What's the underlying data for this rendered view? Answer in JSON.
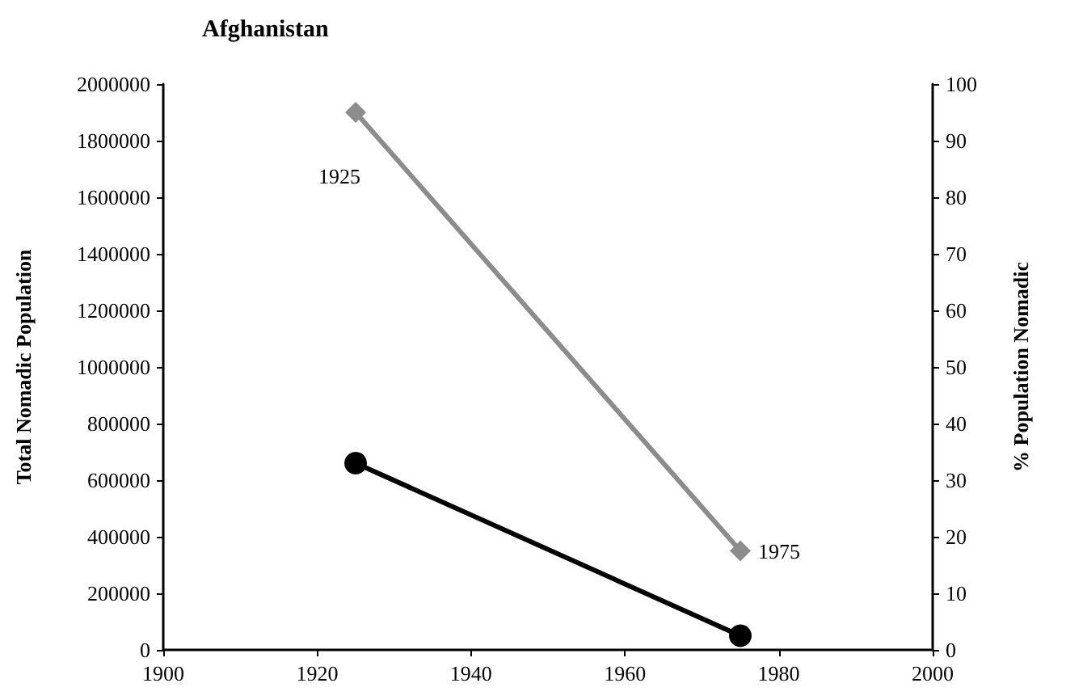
{
  "chart_data": {
    "type": "line",
    "title": "Afghanistan",
    "ylabel": "Total Nomadic Population",
    "y2label": "% Population Nomadic",
    "x": [
      1925,
      1975
    ],
    "series": [
      {
        "color": "#000000",
        "values": [
          660000,
          50000
        ],
        "marker": "circle"
      },
      {
        "color": "#8c8c8c",
        "values": [
          95,
          17.5
        ],
        "axis": "y2",
        "marker": "diamond"
      }
    ],
    "annotations": [
      "1925",
      "1975"
    ],
    "xlim": [
      1900,
      2000
    ],
    "xticks": [
      1900,
      1920,
      1940,
      1960,
      1980,
      2000
    ],
    "ylim": [
      0,
      2000000
    ],
    "yticks": [
      0,
      200000,
      400000,
      600000,
      800000,
      1000000,
      1200000,
      1400000,
      1600000,
      1800000,
      2000000
    ],
    "y2lim": [
      0,
      100
    ],
    "y2ticks": [
      0,
      10,
      20,
      30,
      40,
      50,
      60,
      70,
      80,
      90,
      100
    ],
    "grid": false,
    "line_style": "solid"
  }
}
